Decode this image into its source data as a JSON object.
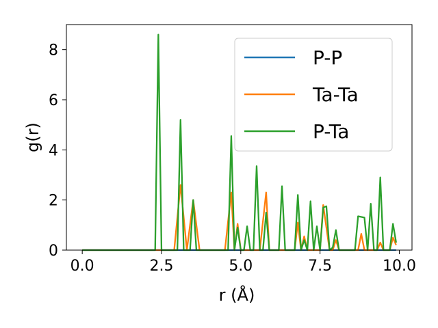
{
  "chart_data": {
    "type": "line",
    "xlabel": "r (Å)",
    "ylabel": "g(r)",
    "xlim": [
      -0.5,
      10.4
    ],
    "ylim": [
      0,
      9.0
    ],
    "xticks": [
      "0.0",
      "2.5",
      "5.0",
      "7.5",
      "10.0"
    ],
    "xtick_values": [
      0.0,
      2.5,
      5.0,
      7.5,
      10.0
    ],
    "yticks": [
      "0",
      "2",
      "4",
      "6",
      "8"
    ],
    "ytick_values": [
      0,
      2,
      4,
      6,
      8
    ],
    "grid": false,
    "legend_position": "upper-right",
    "series": [
      {
        "name": "P-P",
        "color": "#1f77b4",
        "points": [
          [
            0.0,
            0
          ],
          [
            9.9,
            0
          ]
        ]
      },
      {
        "name": "Ta-Ta",
        "color": "#ff7f0e",
        "points": [
          [
            0.0,
            0
          ],
          [
            2.9,
            0
          ],
          [
            3.1,
            2.6
          ],
          [
            3.3,
            0
          ],
          [
            3.5,
            2.0
          ],
          [
            3.7,
            0
          ],
          [
            4.5,
            0
          ],
          [
            4.7,
            2.3
          ],
          [
            4.8,
            0
          ],
          [
            4.9,
            1.05
          ],
          [
            5.0,
            0
          ],
          [
            5.6,
            0
          ],
          [
            5.8,
            2.3
          ],
          [
            5.9,
            0
          ],
          [
            6.7,
            0
          ],
          [
            6.8,
            1.1
          ],
          [
            6.9,
            0
          ],
          [
            7.0,
            0.55
          ],
          [
            7.1,
            0
          ],
          [
            7.5,
            0
          ],
          [
            7.6,
            1.8
          ],
          [
            7.7,
            0.9
          ],
          [
            7.8,
            0
          ],
          [
            7.9,
            0
          ],
          [
            8.0,
            0.4
          ],
          [
            8.1,
            0
          ],
          [
            8.7,
            0
          ],
          [
            8.8,
            0.65
          ],
          [
            8.9,
            0
          ],
          [
            9.3,
            0
          ],
          [
            9.4,
            0.3
          ],
          [
            9.5,
            0
          ],
          [
            9.7,
            0
          ],
          [
            9.8,
            0.5
          ],
          [
            9.9,
            0.2
          ]
        ]
      },
      {
        "name": "P-Ta",
        "color": "#2ca02c",
        "points": [
          [
            0.0,
            0
          ],
          [
            2.3,
            0
          ],
          [
            2.4,
            8.6
          ],
          [
            2.5,
            0
          ],
          [
            3.0,
            0
          ],
          [
            3.1,
            5.2
          ],
          [
            3.2,
            0
          ],
          [
            3.4,
            0
          ],
          [
            3.5,
            2.0
          ],
          [
            3.6,
            0
          ],
          [
            4.6,
            0
          ],
          [
            4.7,
            4.55
          ],
          [
            4.8,
            0
          ],
          [
            4.9,
            0.9
          ],
          [
            5.0,
            0
          ],
          [
            5.1,
            0
          ],
          [
            5.2,
            0.95
          ],
          [
            5.3,
            0
          ],
          [
            5.4,
            0
          ],
          [
            5.5,
            3.35
          ],
          [
            5.6,
            0
          ],
          [
            5.7,
            0
          ],
          [
            5.8,
            1.5
          ],
          [
            5.9,
            0
          ],
          [
            6.2,
            0
          ],
          [
            6.3,
            2.55
          ],
          [
            6.4,
            0
          ],
          [
            6.7,
            0
          ],
          [
            6.8,
            2.2
          ],
          [
            6.9,
            0
          ],
          [
            7.0,
            0.4
          ],
          [
            7.1,
            0
          ],
          [
            7.2,
            1.95
          ],
          [
            7.3,
            0
          ],
          [
            7.4,
            0.95
          ],
          [
            7.5,
            0
          ],
          [
            7.6,
            1.7
          ],
          [
            7.7,
            1.75
          ],
          [
            7.8,
            0
          ],
          [
            7.9,
            0.1
          ],
          [
            8.0,
            0.8
          ],
          [
            8.1,
            0
          ],
          [
            8.6,
            0
          ],
          [
            8.7,
            1.35
          ],
          [
            8.9,
            1.3
          ],
          [
            9.0,
            0
          ],
          [
            9.1,
            1.85
          ],
          [
            9.2,
            0
          ],
          [
            9.3,
            0
          ],
          [
            9.4,
            2.9
          ],
          [
            9.5,
            0
          ],
          [
            9.7,
            0
          ],
          [
            9.8,
            1.05
          ],
          [
            9.9,
            0.3
          ]
        ]
      }
    ]
  }
}
